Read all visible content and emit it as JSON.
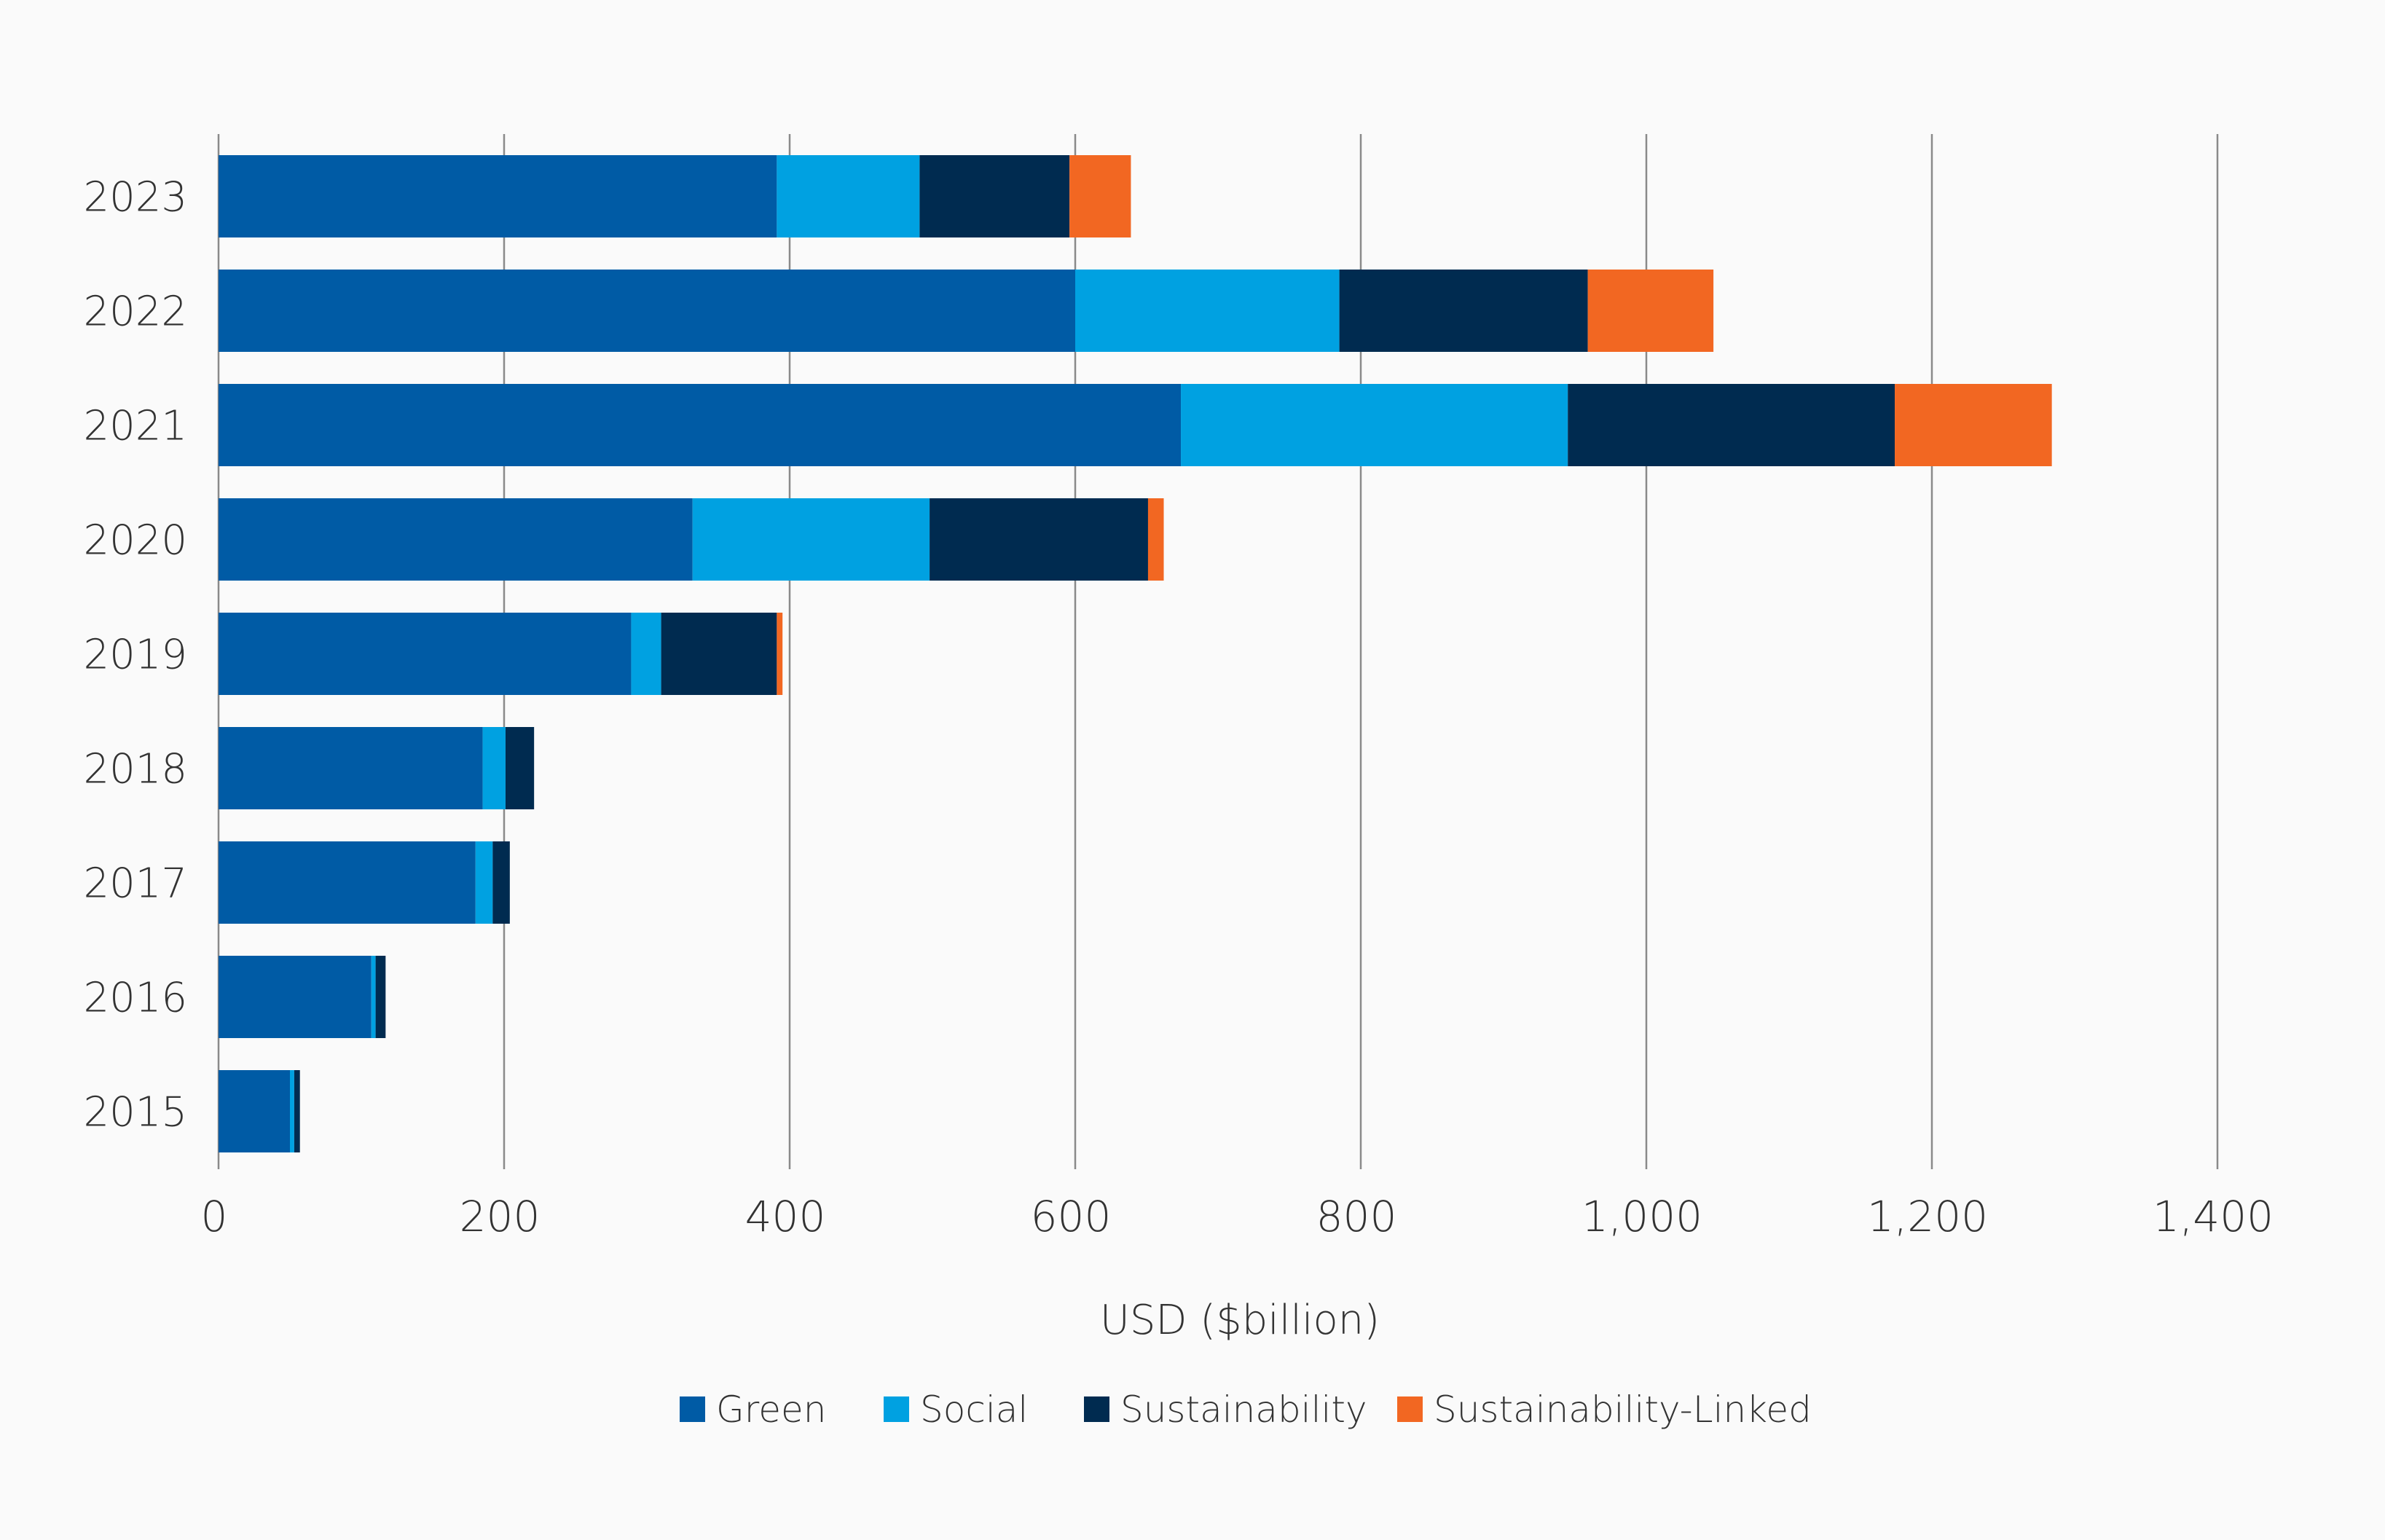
{
  "chart_data": {
    "type": "bar",
    "orientation": "horizontal",
    "stacked": true,
    "title": "",
    "xlabel": "USD ($billion)",
    "ylabel": "",
    "xlim": [
      0,
      1400
    ],
    "xticks": [
      0,
      200,
      400,
      600,
      800,
      1000,
      1200,
      1400
    ],
    "xtick_labels": [
      "0",
      "200",
      "400",
      "600",
      "800",
      "1,000",
      "1,200",
      "1,400"
    ],
    "grid": "vertical",
    "legend_position": "bottom-center",
    "categories": [
      "2023",
      "2022",
      "2021",
      "2020",
      "2019",
      "2018",
      "2017",
      "2016",
      "2015"
    ],
    "series": [
      {
        "name": "Green",
        "color": "#005ba5",
        "values": [
          391,
          600,
          674,
          332,
          289,
          185,
          180,
          107,
          50
        ]
      },
      {
        "name": "Social",
        "color": "#00a1e1",
        "values": [
          100,
          185,
          271,
          166,
          21,
          16,
          12,
          3,
          3
        ]
      },
      {
        "name": "Sustainability",
        "color": "#002b50",
        "values": [
          105,
          174,
          229,
          153,
          81,
          20,
          12,
          7,
          4
        ]
      },
      {
        "name": "Sustainability-Linked",
        "color": "#f26722",
        "values": [
          43,
          88,
          110,
          11,
          4,
          0,
          0,
          0,
          0
        ]
      }
    ]
  }
}
